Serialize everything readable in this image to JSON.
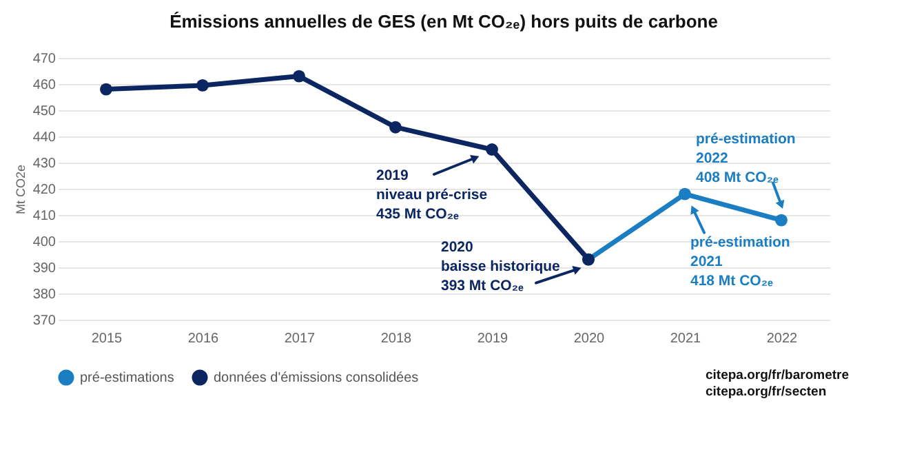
{
  "chart_data": {
    "type": "line",
    "title": "Émissions annuelles de GES (en Mt CO₂ₑ) hors puits de carbone",
    "ylabel": "Mt CO2e",
    "categories": [
      "2015",
      "2016",
      "2017",
      "2018",
      "2019",
      "2020",
      "2021",
      "2022"
    ],
    "series": [
      {
        "name": "pré-estimations",
        "color": "#1b7ec2",
        "values": [
          null,
          null,
          null,
          null,
          null,
          393,
          418,
          408
        ]
      },
      {
        "name": "données d'émissions consolidées",
        "color": "#0b2660",
        "values": [
          458,
          459.5,
          463,
          443.5,
          435,
          393,
          null,
          null
        ]
      }
    ],
    "ylim": [
      370,
      470
    ],
    "yticks": [
      370,
      380,
      390,
      400,
      410,
      420,
      430,
      440,
      450,
      460,
      470
    ],
    "grid": "y",
    "legend": "bottom",
    "marker": "circle",
    "line_style": "solid",
    "annotations": [
      {
        "text": "2019\nniveau pré-crise\n435 Mt CO₂ₑ",
        "x": "2019",
        "y": 435
      },
      {
        "text": "2020\nbaisse historique\n393 Mt CO₂ₑ",
        "x": "2020",
        "y": 393
      },
      {
        "text": "pré-estimation\n2021\n418 Mt CO₂ₑ",
        "x": "2021",
        "y": 418
      },
      {
        "text": "pré-estimation\n2022\n408 Mt CO₂ₑ",
        "x": "2022",
        "y": 408
      },
      "citepa.org/fr/barometre\ncitepa.org/fr/secten"
    ]
  }
}
